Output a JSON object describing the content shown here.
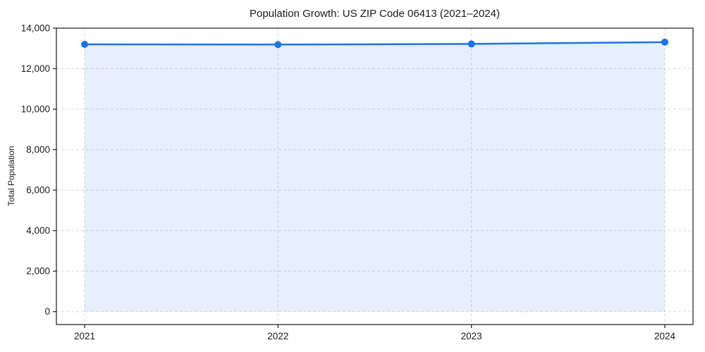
{
  "chart_data": {
    "type": "area",
    "title": "Population Growth: US ZIP Code 06413 (2021–2024)",
    "xlabel": "",
    "ylabel": "Total Population",
    "categories": [
      "2021",
      "2022",
      "2023",
      "2024"
    ],
    "series": [
      {
        "name": "Total Population",
        "values": [
          13200,
          13190,
          13220,
          13310
        ]
      }
    ],
    "ylim": [
      0,
      14000
    ],
    "ytick_step": 2000,
    "ytick_format": "comma",
    "grid": "on",
    "grid_style": "dashed",
    "legend": "none",
    "colors": {
      "line": "#1a73e8",
      "marker": "#1a73e8",
      "fill": "rgba(26,115,232,0.11)",
      "grid": "#d9d9d9",
      "spine": "#1a1a1a",
      "text": "#1a1a1a",
      "background": "#ffffff"
    }
  }
}
